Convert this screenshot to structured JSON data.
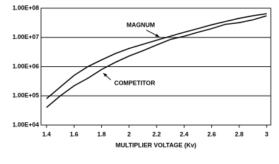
{
  "chart_data": {
    "type": "line",
    "x_label": "MULTIPLIER VOLTAGE (Kv)",
    "x": [
      1.4,
      1.5,
      1.6,
      1.7,
      1.8,
      1.9,
      2.0,
      2.1,
      2.2,
      2.3,
      2.4,
      2.5,
      2.6,
      2.7,
      2.8,
      2.9,
      3.0
    ],
    "series": [
      {
        "name": "MAGNUM",
        "color": "#000000",
        "values": [
          80000,
          200000,
          500000,
          1000000,
          1700000,
          2800000,
          4200000,
          5800000,
          8000000,
          11000000,
          15000000,
          20000000,
          27000000,
          35000000,
          45000000,
          55000000,
          65000000
        ]
      },
      {
        "name": "COMPETITOR",
        "color": "#000000",
        "values": [
          40000,
          100000,
          220000,
          400000,
          800000,
          1400000,
          2300000,
          3500000,
          5500000,
          8500000,
          11000000,
          15000000,
          20000000,
          28000000,
          32000000,
          40000000,
          55000000
        ]
      }
    ],
    "xlim": [
      1.36,
      3.03
    ],
    "xticks": [
      1.4,
      1.6,
      1.8,
      2.0,
      2.2,
      2.4,
      2.6,
      2.8,
      3.0
    ],
    "ylim": [
      10000,
      100000000
    ],
    "yticks": [
      {
        "value": 10000,
        "label": "1.00E+04"
      },
      {
        "value": 100000,
        "label": "1.00E+05"
      },
      {
        "value": 1000000,
        "label": "1.00E+06"
      },
      {
        "value": 10000000,
        "label": "1.00E+07"
      },
      {
        "value": 100000000,
        "label": "1.00E+08"
      }
    ],
    "ylog": true,
    "grid": true
  }
}
